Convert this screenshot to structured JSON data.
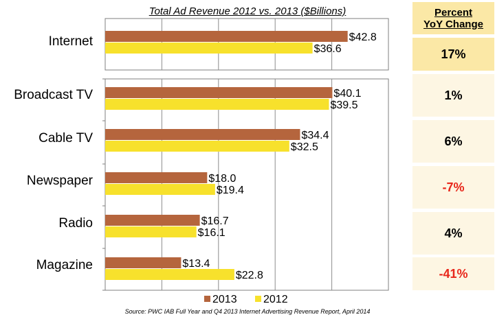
{
  "chart_data": {
    "type": "bar",
    "orientation": "horizontal",
    "title": "Total Ad Revenue 2012 vs. 2013 ($Billions)",
    "categories": [
      "Internet",
      "Broadcast TV",
      "Cable TV",
      "Newspaper",
      "Radio",
      "Magazine"
    ],
    "series": [
      {
        "name": "2013",
        "color": "#b5653d",
        "values": [
          42.8,
          40.1,
          34.4,
          18.0,
          16.7,
          13.4
        ],
        "labels": [
          "$42.8",
          "$40.1",
          "$34.4",
          "$18.0",
          "$16.7",
          "$13.4"
        ]
      },
      {
        "name": "2012",
        "color": "#f7e12c",
        "values": [
          36.6,
          39.5,
          32.5,
          19.4,
          16.1,
          22.8
        ],
        "labels": [
          "$36.6",
          "$39.5",
          "$32.5",
          "$19.4",
          "$16.1",
          "$22.8"
        ]
      }
    ],
    "xlim": [
      0,
      50
    ],
    "grid": true,
    "legend_position": "bottom"
  },
  "yoy": {
    "header_line1": "Percent",
    "header_line2": "YoY Change",
    "values": [
      "17%",
      "1%",
      "6%",
      "-7%",
      "4%",
      "-41%"
    ],
    "colors": [
      "#000000",
      "#000000",
      "#000000",
      "#e8271b",
      "#000000",
      "#e8271b"
    ],
    "highlight_color": "#fbe8a6",
    "cell_color": "#fdf6e3"
  },
  "source": "Source:  PWC IAB Full Year and Q4 2013 Internet Advertising Revenue Report, April 2014"
}
